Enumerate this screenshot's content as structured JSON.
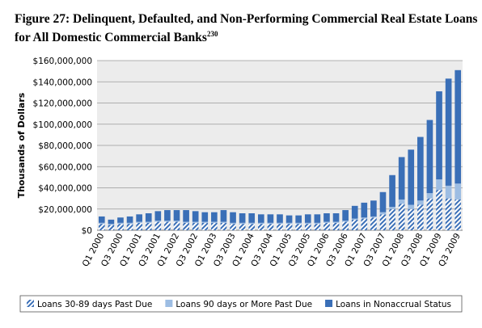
{
  "chart_data": {
    "type": "stacked_bar",
    "title": "Figure 27: Delinquent, Defaulted, and Non-Performing Commercial Real Estate Loans for All Domestic Commercial Banks",
    "title_superscript": "230",
    "ylabel": "Thousands of Dollars",
    "categories": [
      "Q1 2000",
      null,
      "Q3 2000",
      null,
      "Q1 2001",
      null,
      "Q3 2001",
      null,
      "Q1 2002",
      null,
      "Q3 2002",
      null,
      "Q1 2003",
      null,
      "Q3 2003",
      null,
      "Q1 2004",
      null,
      "Q3 2004",
      null,
      "Q1 2005",
      null,
      "Q3 2005",
      null,
      "Q1 2006",
      null,
      "Q3 2006",
      null,
      "Q1 2007",
      null,
      "Q3 2007",
      null,
      "Q1 2008",
      null,
      "Q3 2008",
      null,
      "Q1 2009",
      null,
      "Q3 2009"
    ],
    "series": [
      {
        "name": "Loans 30-89 days Past Due",
        "color": "#3a6fb7",
        "pattern": "hatch",
        "values": [
          6000000,
          5000000,
          6000000,
          6000000,
          7000000,
          7000000,
          8000000,
          8000000,
          8000000,
          7000000,
          7000000,
          7000000,
          7000000,
          7000000,
          6000000,
          6000000,
          6000000,
          6000000,
          6000000,
          6000000,
          6000000,
          6000000,
          6000000,
          6000000,
          7000000,
          7000000,
          8000000,
          10000000,
          11000000,
          12000000,
          15000000,
          20000000,
          25000000,
          20000000,
          24000000,
          30000000,
          38000000,
          30000000,
          29000000
        ]
      },
      {
        "name": "Loans 90 days or More Past Due",
        "color": "#9dbde3",
        "values": [
          1000000,
          1000000,
          1000000,
          1000000,
          1000000,
          1000000,
          1000000,
          1000000,
          1000000,
          1000000,
          1000000,
          1000000,
          1000000,
          1000000,
          1000000,
          1000000,
          1000000,
          1000000,
          1000000,
          1000000,
          1000000,
          1000000,
          1000000,
          1000000,
          1000000,
          1000000,
          1000000,
          1000000,
          1000000,
          1000000,
          2000000,
          2000000,
          4000000,
          4000000,
          4000000,
          5000000,
          10000000,
          12000000,
          15000000
        ]
      },
      {
        "name": "Loans in Nonaccrual Status",
        "color": "#3a6fb7",
        "values": [
          6000000,
          4000000,
          5000000,
          6000000,
          7000000,
          8000000,
          9000000,
          10000000,
          10000000,
          11000000,
          10000000,
          9000000,
          9000000,
          11000000,
          10000000,
          9000000,
          9000000,
          8000000,
          8000000,
          8000000,
          7000000,
          7000000,
          8000000,
          8000000,
          8000000,
          8000000,
          10000000,
          12000000,
          14000000,
          15000000,
          19000000,
          30000000,
          40000000,
          52000000,
          60000000,
          69000000,
          83000000,
          101000000,
          107000000
        ]
      }
    ],
    "ylim": [
      0,
      160000000
    ],
    "yticks": [
      {
        "value": 0,
        "label": "$0"
      },
      {
        "value": 20000000,
        "label": "$20,000,000"
      },
      {
        "value": 40000000,
        "label": "$40,000,000"
      },
      {
        "value": 60000000,
        "label": "$60,000,000"
      },
      {
        "value": 80000000,
        "label": "$80,000,000"
      },
      {
        "value": 100000000,
        "label": "$100,000,000"
      },
      {
        "value": 120000000,
        "label": "$120,000,000"
      },
      {
        "value": 140000000,
        "label": "$140,000,000"
      },
      {
        "value": 160000000,
        "label": "$160,000,000"
      }
    ],
    "grid": true,
    "legend": "bottom"
  }
}
